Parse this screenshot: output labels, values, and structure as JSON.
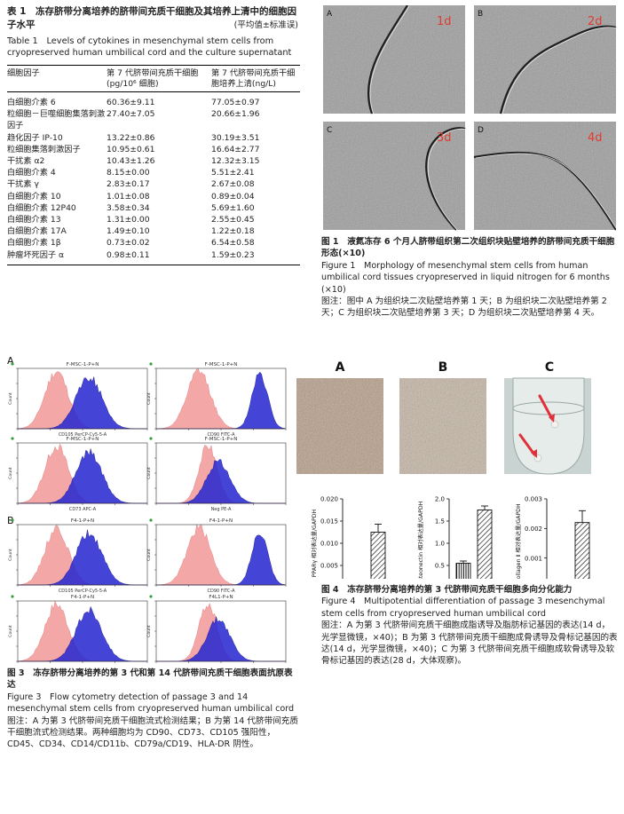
{
  "table1": {
    "title_cn": "表 1　冻存脐带分离培养的脐带间充质干细胞及其培养上清中的细胞因子水平",
    "unit": "(平均值±标准误)",
    "title_en": "Table 1　Levels of cytokines in mesenchymal stem cells from cryopreserved human umbilical cord and the culture supernatant",
    "headers": [
      "细胞因子",
      "第 7 代脐带间充质干细胞 (pg/10⁶ 细胞)",
      "第 7 代脐带间充质干细胞培养上清(ng/L)"
    ],
    "rows": [
      [
        "白细胞介素 6",
        "60.36±9.11",
        "77.05±0.97"
      ],
      [
        "粒细胞－巨噬细胞集落刺激因子",
        "27.40±7.05",
        "20.66±1.96"
      ],
      [
        "趋化因子 IP-10",
        "13.22±0.86",
        "30.19±3.51"
      ],
      [
        "粒细胞集落刺激因子",
        "10.95±0.61",
        "16.64±2.77"
      ],
      [
        "干扰素 α2",
        "10.43±1.26",
        "12.32±3.15"
      ],
      [
        "白细胞介素 4",
        "8.15±0.00",
        "5.51±2.41"
      ],
      [
        "干扰素 γ",
        "2.83±0.17",
        "2.67±0.08"
      ],
      [
        "白细胞介素 10",
        "1.01±0.08",
        "0.89±0.04"
      ],
      [
        "白细胞介素 12P40",
        "3.58±0.34",
        "5.69±1.60"
      ],
      [
        "白细胞介素 13",
        "1.31±0.00",
        "2.55±0.45"
      ],
      [
        "白细胞介素 17A",
        "1.49±0.10",
        "1.22±0.18"
      ],
      [
        "白细胞介素 1β",
        "0.73±0.02",
        "6.54±0.58"
      ],
      [
        "肿瘤坏死因子 α",
        "0.98±0.11",
        "1.59±0.23"
      ]
    ]
  },
  "figure1": {
    "panels": [
      {
        "letter": "A",
        "day": "1d"
      },
      {
        "letter": "B",
        "day": "2d"
      },
      {
        "letter": "C",
        "day": "3d"
      },
      {
        "letter": "D",
        "day": "4d"
      }
    ],
    "caption_cn": "图 1　液氮冻存 6 个月人脐带组织第二次组织块贴壁培养的脐带间充质干细胞形态(×10)",
    "caption_en": "Figure 1　Morphology of mesenchymal stem cells from human umbilical cord tissues cryopreserved in liquid nitrogen for 6 months (×10)",
    "note": "图注：图中 A 为组织块二次贴壁培养第 1 天；B 为组织块二次贴壁培养第 2 天；C 为组织块二次贴壁培养第 3 天；D 为组织块二次贴壁培养第 4 天。",
    "colors": {
      "day_label": "#e23b2e"
    }
  },
  "figure3": {
    "group_a": "A",
    "group_b": "B",
    "plots": [
      {
        "title": "F-MSC-1-P+N",
        "xlabel": "CD105 PerCP-Cy5-5-A",
        "mode": "shift"
      },
      {
        "title": "F-MSC-1-P+N",
        "xlabel": "CD90 FITC-A",
        "mode": "far"
      },
      {
        "title": "F-MSC-1-P+N",
        "xlabel": "CD73 APC-A",
        "mode": "shift"
      },
      {
        "title": "F-MSC-1-P+N",
        "xlabel": "Neg PE-A",
        "mode": "overlap"
      },
      {
        "title": "F4-1-P+N",
        "xlabel": "CD105 PerCP-Cy5-5-A",
        "mode": "shift"
      },
      {
        "title": "F4-1-P+N",
        "xlabel": "CD90 FITC-A",
        "mode": "far"
      },
      {
        "title": "F4-1-P+N",
        "xlabel": "CD73 APC-A",
        "mode": "shift"
      },
      {
        "title": "F4L1-P+N",
        "xlabel": "Neg PE-A",
        "mode": "overlap"
      }
    ],
    "ylabel": "Count",
    "colors": {
      "control": "#f4a7a7",
      "sample": "#2a2ad0"
    },
    "caption_cn": "图 3　冻存脐带分离培养的第 3 代和第 14 代脐带间充质干细胞表面抗原表达",
    "caption_en": "Figure 3　Flow cytometry detection of passage 3 and 14 mesenchymal stem cells from cryopreserved human umbilical cord",
    "note": "图注：A 为第 3 代脐带间充质干细胞流式检测结果；B 为第 14 代脐带间充质干细胞流式检测结果。两种细胞均为 CD90、CD73、CD105 强阳性，CD45、CD34、CD14/CD11b、CD79a/CD19、HLA-DR 阴性。"
  },
  "figure4": {
    "panel_letters": [
      "A",
      "B",
      "C"
    ],
    "caption_cn": "图 4　冻存脐带分离培养的第 3 代脐带间充质干细胞多向分化能力",
    "caption_en": "Figure 4　Multipotential differentiation of passage 3 mesenchymal stem cells from cryopreserved human umbilical cord",
    "note": "图注：A 为第 3 代脐带间充质干细胞成脂诱导及脂肪标记基因的表达(14 d，光学显微镜，×40)；B 为第 3 代脐带间充质干细胞成骨诱导及骨标记基因的表达(14 d，光学显微镜，×40)；C 为第 3 代脐带间充质干细胞成软骨诱导及软骨标记基因的表达(28 d，大体观察)。",
    "colors": {
      "arrow": "#e0303a"
    }
  },
  "chart_data": [
    {
      "type": "bar",
      "ylabel": "PPARγ 相对表达量/GAPDH",
      "categories": [
        "未分化",
        "成脂分化"
      ],
      "values": [
        0.0013,
        0.0125
      ],
      "errors": [
        0.0005,
        0.0018
      ],
      "ylim": [
        0,
        0.02
      ],
      "yticks": [
        "0.000",
        "0.005",
        "0.010",
        "0.015",
        "0.020"
      ]
    },
    {
      "type": "bar",
      "ylabel": "Osteonectin 相对表达量/GAPDH",
      "categories": [
        "未分化",
        "成骨分化"
      ],
      "values": [
        0.55,
        1.75
      ],
      "errors": [
        0.05,
        0.09
      ],
      "ylim": [
        0,
        2.0
      ],
      "yticks": [
        "0.0",
        "0.5",
        "1.0",
        "1.5",
        "2.0"
      ]
    },
    {
      "type": "bar",
      "ylabel": "Collagen Ⅱ 相对表达量/GAPDH",
      "categories": [
        "未分化",
        "成软骨分化"
      ],
      "values": [
        3e-05,
        0.0022
      ],
      "errors": [
        1e-05,
        0.0004
      ],
      "ylim": [
        0,
        0.003
      ],
      "yticks": [
        "0.000",
        "0.001",
        "0.002",
        "0.003"
      ]
    }
  ]
}
